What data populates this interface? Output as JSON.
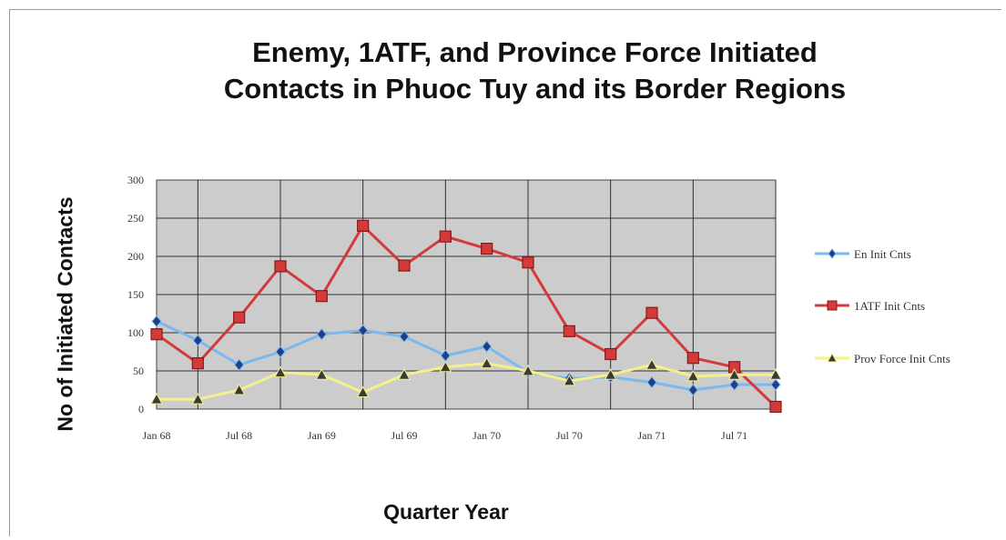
{
  "chart_data": {
    "type": "line",
    "title_lines": [
      "Enemy, 1ATF, and Province Force Initiated",
      "Contacts in Phuoc Tuy and its Border Regions"
    ],
    "xlabel": "Quarter Year",
    "ylabel": "No of Initiated Contacts",
    "ylim": [
      0,
      300
    ],
    "yticks": [
      "0",
      "50",
      "100",
      "150",
      "200",
      "250",
      "300"
    ],
    "xtick_labels": [
      "Jan 68",
      "Jul 68",
      "Jan 69",
      "Jul 69",
      "Jan 70",
      "Jul 70",
      "Jan 71",
      "Jul 71"
    ],
    "grid": true,
    "legend_placement": "right",
    "series": [
      {
        "name": "En Init Cnts",
        "color": "#7bb8ee",
        "marker": "diamond",
        "values": [
          115,
          90,
          58,
          75,
          98,
          103,
          95,
          70,
          82,
          48,
          40,
          42,
          35,
          25,
          32,
          32
        ]
      },
      {
        "name": "1ATF Init Cnts",
        "color": "#d33a3a",
        "marker": "square",
        "values": [
          98,
          60,
          120,
          187,
          148,
          240,
          188,
          226,
          210,
          192,
          102,
          72,
          126,
          67,
          55,
          3
        ]
      },
      {
        "name": "Prov Force Init Cnts",
        "color": "#f4f08a",
        "marker": "triangle",
        "values": [
          13,
          13,
          25,
          48,
          45,
          22,
          45,
          55,
          60,
          50,
          37,
          45,
          58,
          43,
          45,
          45
        ]
      }
    ]
  }
}
